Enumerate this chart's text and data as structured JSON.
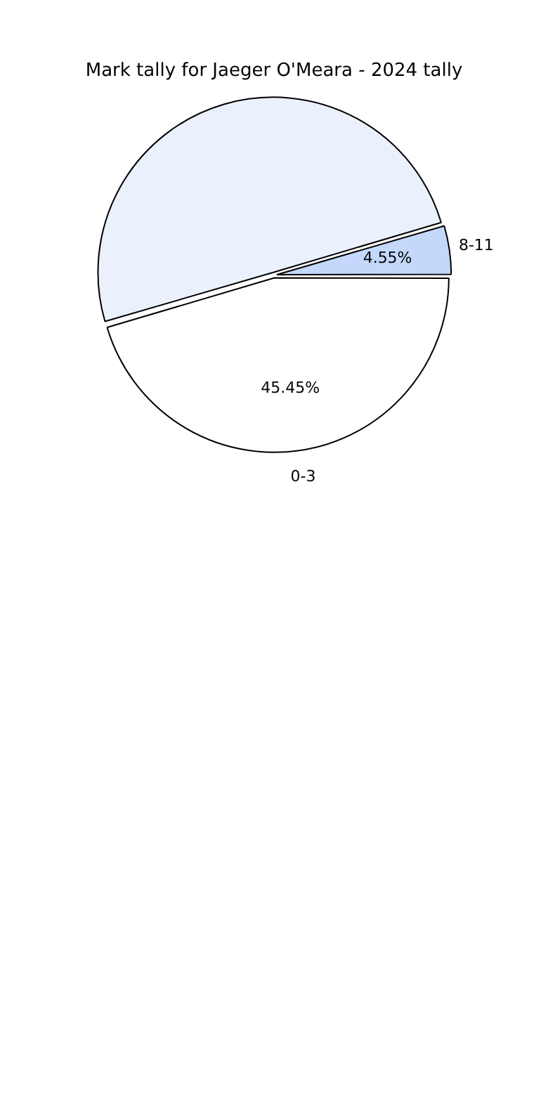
{
  "chart_data": {
    "type": "pie",
    "title": "Mark tally for Jaeger O'Meara - 2024 tally",
    "categories": [
      "0-3",
      null,
      "8-11"
    ],
    "values": [
      45.45,
      50,
      4.55
    ],
    "value_labels": [
      "45.45%",
      null,
      "4.55%"
    ],
    "colors": [
      "#ffffff",
      "#eaf1fd",
      "#c4d8fc"
    ],
    "legend": false
  }
}
